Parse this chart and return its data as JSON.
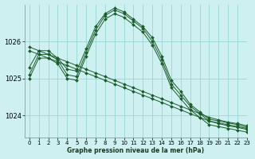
{
  "title": "Graphe pression niveau de la mer (hPa)",
  "bg_color": "#cff0f0",
  "grid_color": "#a0d8d8",
  "line_color": "#1a5c2a",
  "marker_color": "#1a5c2a",
  "xlim": [
    -0.5,
    23
  ],
  "ylim": [
    1023.4,
    1027.0
  ],
  "yticks": [
    1024,
    1025,
    1026
  ],
  "xticks": [
    0,
    1,
    2,
    3,
    4,
    5,
    6,
    7,
    8,
    9,
    10,
    11,
    12,
    13,
    14,
    15,
    16,
    17,
    18,
    19,
    20,
    21,
    22,
    23
  ],
  "series": [
    {
      "x": [
        0,
        1,
        2,
        3,
        4,
        5,
        6,
        7,
        8,
        9,
        10,
        11,
        12,
        13,
        14,
        15,
        16,
        17,
        18,
        19,
        20,
        21,
        22,
        23
      ],
      "y": [
        1025.1,
        1025.65,
        1025.65,
        1025.5,
        1025.1,
        1025.05,
        1025.7,
        1026.3,
        1026.7,
        1026.85,
        1026.75,
        1026.55,
        1026.35,
        1026.0,
        1025.5,
        1024.85,
        1024.55,
        1024.25,
        1024.05,
        1023.85,
        1023.8,
        1023.75,
        1023.7,
        1023.65
      ]
    },
    {
      "x": [
        0,
        1,
        2,
        3,
        4,
        5,
        6,
        7,
        8,
        9,
        10,
        11,
        12,
        13,
        14,
        15,
        16,
        17,
        18,
        19,
        20,
        21,
        22,
        23
      ],
      "y": [
        1025.0,
        1025.55,
        1025.55,
        1025.4,
        1025.0,
        1024.95,
        1025.6,
        1026.2,
        1026.6,
        1026.75,
        1026.65,
        1026.45,
        1026.25,
        1025.9,
        1025.4,
        1024.75,
        1024.45,
        1024.15,
        1023.95,
        1023.75,
        1023.7,
        1023.65,
        1023.6,
        1023.55
      ]
    },
    {
      "x": [
        0,
        1,
        2,
        3,
        4,
        5,
        6,
        7,
        8,
        9,
        10,
        11,
        12,
        13,
        14,
        15,
        16,
        17,
        18,
        19,
        20,
        21,
        22,
        23
      ],
      "y": [
        1025.75,
        1025.65,
        1025.55,
        1025.45,
        1025.35,
        1025.25,
        1025.15,
        1025.05,
        1024.95,
        1024.85,
        1024.75,
        1024.65,
        1024.55,
        1024.45,
        1024.35,
        1024.25,
        1024.15,
        1024.05,
        1023.95,
        1023.85,
        1023.78,
        1023.72,
        1023.68,
        1023.62
      ]
    },
    {
      "x": [
        0,
        1,
        2,
        3,
        4,
        5,
        6,
        7,
        8,
        9,
        10,
        11,
        12,
        13,
        14,
        15,
        16,
        17,
        18,
        19,
        20,
        21,
        22,
        23
      ],
      "y": [
        1025.85,
        1025.75,
        1025.65,
        1025.55,
        1025.45,
        1025.35,
        1025.25,
        1025.15,
        1025.05,
        1024.95,
        1024.85,
        1024.75,
        1024.65,
        1024.55,
        1024.45,
        1024.35,
        1024.25,
        1024.15,
        1024.05,
        1023.95,
        1023.88,
        1023.82,
        1023.78,
        1023.72
      ]
    },
    {
      "x": [
        0,
        1,
        2,
        3,
        4,
        5,
        6,
        7,
        8,
        9,
        10,
        11,
        12,
        13,
        14,
        15,
        16,
        17,
        18,
        19,
        20,
        21,
        22,
        23
      ],
      "y": [
        1025.3,
        1025.75,
        1025.75,
        1025.55,
        1025.25,
        1025.2,
        1025.8,
        1026.4,
        1026.75,
        1026.9,
        1026.8,
        1026.6,
        1026.4,
        1026.1,
        1025.6,
        1024.95,
        1024.65,
        1024.3,
        1024.1,
        1023.9,
        1023.85,
        1023.8,
        1023.75,
        1023.68
      ]
    }
  ]
}
